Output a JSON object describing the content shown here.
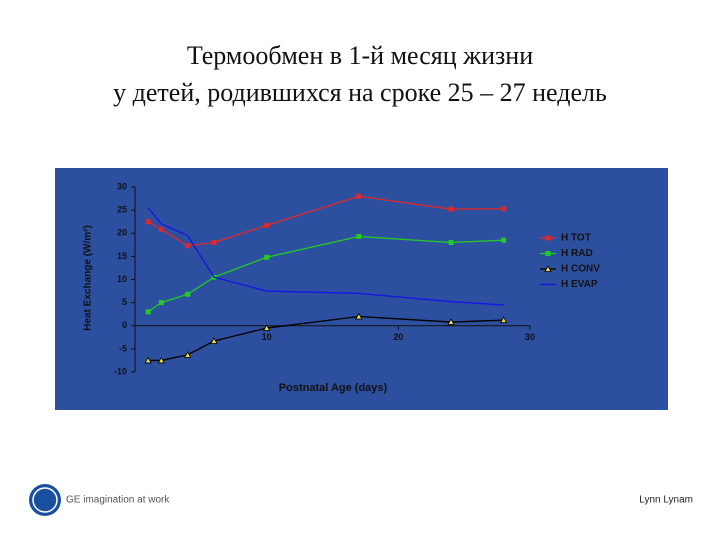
{
  "title": [
    "Термообмен в 1-й месяц жизни",
    "у детей, родившихся на сроке 25 – 27 недель"
  ],
  "chart_data": {
    "type": "line",
    "xlabel": "Postnatal Age (days)",
    "ylabel": "Heat Exchange (W/m²)",
    "x": [
      1,
      2,
      4,
      6,
      10,
      17,
      24,
      28
    ],
    "xlim": [
      0,
      30
    ],
    "xticks": [
      10,
      20,
      30
    ],
    "ylim": [
      -10,
      30
    ],
    "yticks": [
      -10,
      -5,
      0,
      5,
      10,
      15,
      20,
      25,
      30
    ],
    "series": [
      {
        "name": "H TOT",
        "color": "#e02828",
        "marker": "square",
        "values": [
          22.5,
          20.8,
          17.3,
          18,
          21.7,
          28,
          25.2,
          25.3
        ]
      },
      {
        "name": "H RAD",
        "color": "#22cc22",
        "marker": "square",
        "values": [
          3,
          5,
          6.8,
          10.5,
          14.8,
          19.3,
          18,
          18.5
        ]
      },
      {
        "name": "H CONV",
        "color": "#000000",
        "marker": "triangle",
        "values": [
          -7.5,
          -7.5,
          -6.3,
          -3.3,
          -0.5,
          2,
          0.8,
          1.2
        ]
      },
      {
        "name": "H EVAP",
        "color": "#1414e6",
        "marker": "none",
        "values": [
          25.5,
          22,
          19.5,
          10.5,
          7.5,
          7,
          5.2,
          4.5
        ]
      }
    ]
  },
  "footer": {
    "tagline": "GE imagination at work",
    "author": "Lynn Lynam"
  }
}
